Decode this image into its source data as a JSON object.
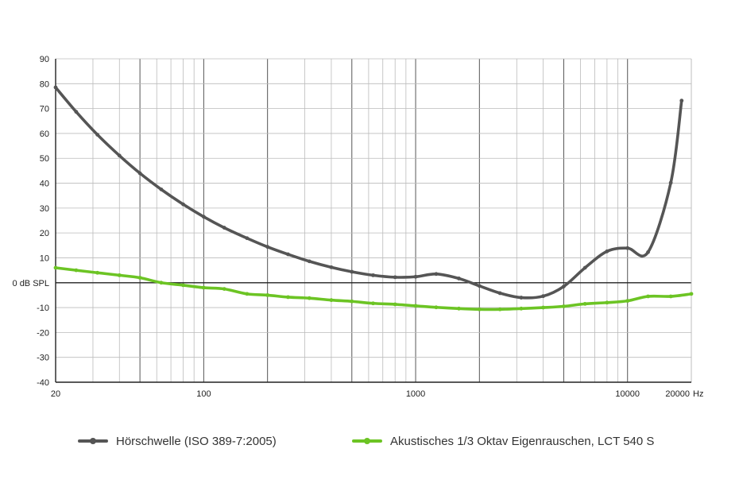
{
  "colors": {
    "threshold": "#555555",
    "noise": "#6cc424",
    "grid": "#bbbbbb",
    "grid_major": "#555555",
    "axis": "#222222"
  },
  "chart_data": {
    "type": "line",
    "xscale": "log",
    "xlim": [
      20,
      20000
    ],
    "ylim": [
      -40,
      90
    ],
    "x_ticks": [
      {
        "value": 20,
        "label": "20"
      },
      {
        "value": 100,
        "label": "100"
      },
      {
        "value": 1000,
        "label": "1000"
      },
      {
        "value": 10000,
        "label": "10000"
      },
      {
        "value": 20000,
        "label": "20000"
      }
    ],
    "x_unit": "Hz",
    "x_major_lines": [
      50,
      100,
      200,
      500,
      1000,
      2000,
      5000,
      10000
    ],
    "y_ticks": [
      {
        "value": 90,
        "label": "90"
      },
      {
        "value": 80,
        "label": "80"
      },
      {
        "value": 70,
        "label": "70"
      },
      {
        "value": 60,
        "label": "60"
      },
      {
        "value": 50,
        "label": "50"
      },
      {
        "value": 40,
        "label": "40"
      },
      {
        "value": 30,
        "label": "30"
      },
      {
        "value": 20,
        "label": "20"
      },
      {
        "value": 10,
        "label": "10"
      },
      {
        "value": 0,
        "label": "0 dB SPL"
      },
      {
        "value": -10,
        "label": "-10"
      },
      {
        "value": -20,
        "label": "-20"
      },
      {
        "value": -30,
        "label": "-30"
      },
      {
        "value": -40,
        "label": "-40"
      }
    ],
    "grid": true,
    "legend_position": "bottom",
    "series": [
      {
        "name": "Hörschwelle (ISO 389-7:2005)",
        "color": "#555555",
        "points": [
          [
            20,
            78.5
          ],
          [
            25,
            68.7
          ],
          [
            31.5,
            59.5
          ],
          [
            40,
            51.1
          ],
          [
            50,
            44.0
          ],
          [
            63,
            37.5
          ],
          [
            80,
            31.5
          ],
          [
            100,
            26.5
          ],
          [
            125,
            22.1
          ],
          [
            160,
            17.9
          ],
          [
            200,
            14.4
          ],
          [
            250,
            11.4
          ],
          [
            315,
            8.6
          ],
          [
            400,
            6.2
          ],
          [
            500,
            4.4
          ],
          [
            630,
            3.0
          ],
          [
            800,
            2.2
          ],
          [
            1000,
            2.4
          ],
          [
            1250,
            3.5
          ],
          [
            1600,
            1.7
          ],
          [
            2000,
            -1.3
          ],
          [
            2500,
            -4.2
          ],
          [
            3150,
            -6.0
          ],
          [
            4000,
            -5.4
          ],
          [
            5000,
            -1.5
          ],
          [
            6300,
            6.0
          ],
          [
            8000,
            12.6
          ],
          [
            10000,
            13.9
          ],
          [
            12500,
            12.3
          ],
          [
            16000,
            40.2
          ],
          [
            18000,
            73.2
          ]
        ]
      },
      {
        "name": "Akustisches 1/3 Oktav Eigenrauschen, LCT 540 S",
        "color": "#6cc424",
        "points": [
          [
            20,
            6.0
          ],
          [
            25,
            5.0
          ],
          [
            31.5,
            4.0
          ],
          [
            40,
            3.0
          ],
          [
            50,
            2.0
          ],
          [
            63,
            0.0
          ],
          [
            80,
            -1.0
          ],
          [
            100,
            -2.0
          ],
          [
            125,
            -2.5
          ],
          [
            160,
            -4.5
          ],
          [
            200,
            -5.0
          ],
          [
            250,
            -5.8
          ],
          [
            315,
            -6.2
          ],
          [
            400,
            -7.0
          ],
          [
            500,
            -7.5
          ],
          [
            630,
            -8.3
          ],
          [
            800,
            -8.7
          ],
          [
            1000,
            -9.3
          ],
          [
            1250,
            -9.9
          ],
          [
            1600,
            -10.4
          ],
          [
            2000,
            -10.7
          ],
          [
            2500,
            -10.7
          ],
          [
            3150,
            -10.4
          ],
          [
            4000,
            -10.0
          ],
          [
            5000,
            -9.5
          ],
          [
            6300,
            -8.5
          ],
          [
            8000,
            -8.0
          ],
          [
            10000,
            -7.3
          ],
          [
            12500,
            -5.5
          ],
          [
            16000,
            -5.5
          ],
          [
            20000,
            -4.5
          ]
        ]
      }
    ]
  }
}
